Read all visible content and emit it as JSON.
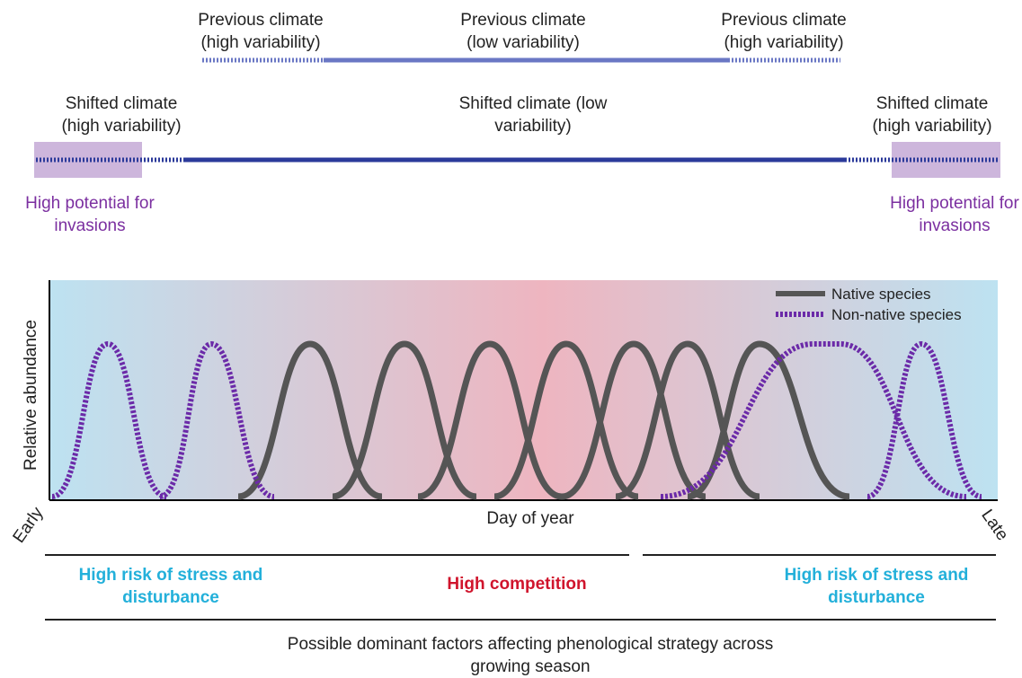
{
  "previous_climate": [
    "Previous climate (high variability)",
    "Previous climate (low variability)",
    "Previous climate (high variability)"
  ],
  "shifted_climate": [
    "Shifted climate (high variability)",
    "Shifted climate (low variability)",
    "Shifted climate (high variability)"
  ],
  "invasion_notes": [
    "High potential for invasions",
    "High potential for invasions"
  ],
  "plot": {
    "y_label": "Relative abundance",
    "x_label": "Day of year",
    "x_start": "Early",
    "x_end": "Late",
    "legend": [
      "Native species",
      "Non-native species"
    ]
  },
  "factors": [
    "High risk of stress and disturbance",
    "High competition",
    "High risk of stress and disturbance"
  ],
  "footer": "Possible dominant factors affecting phenological strategy across growing season"
}
